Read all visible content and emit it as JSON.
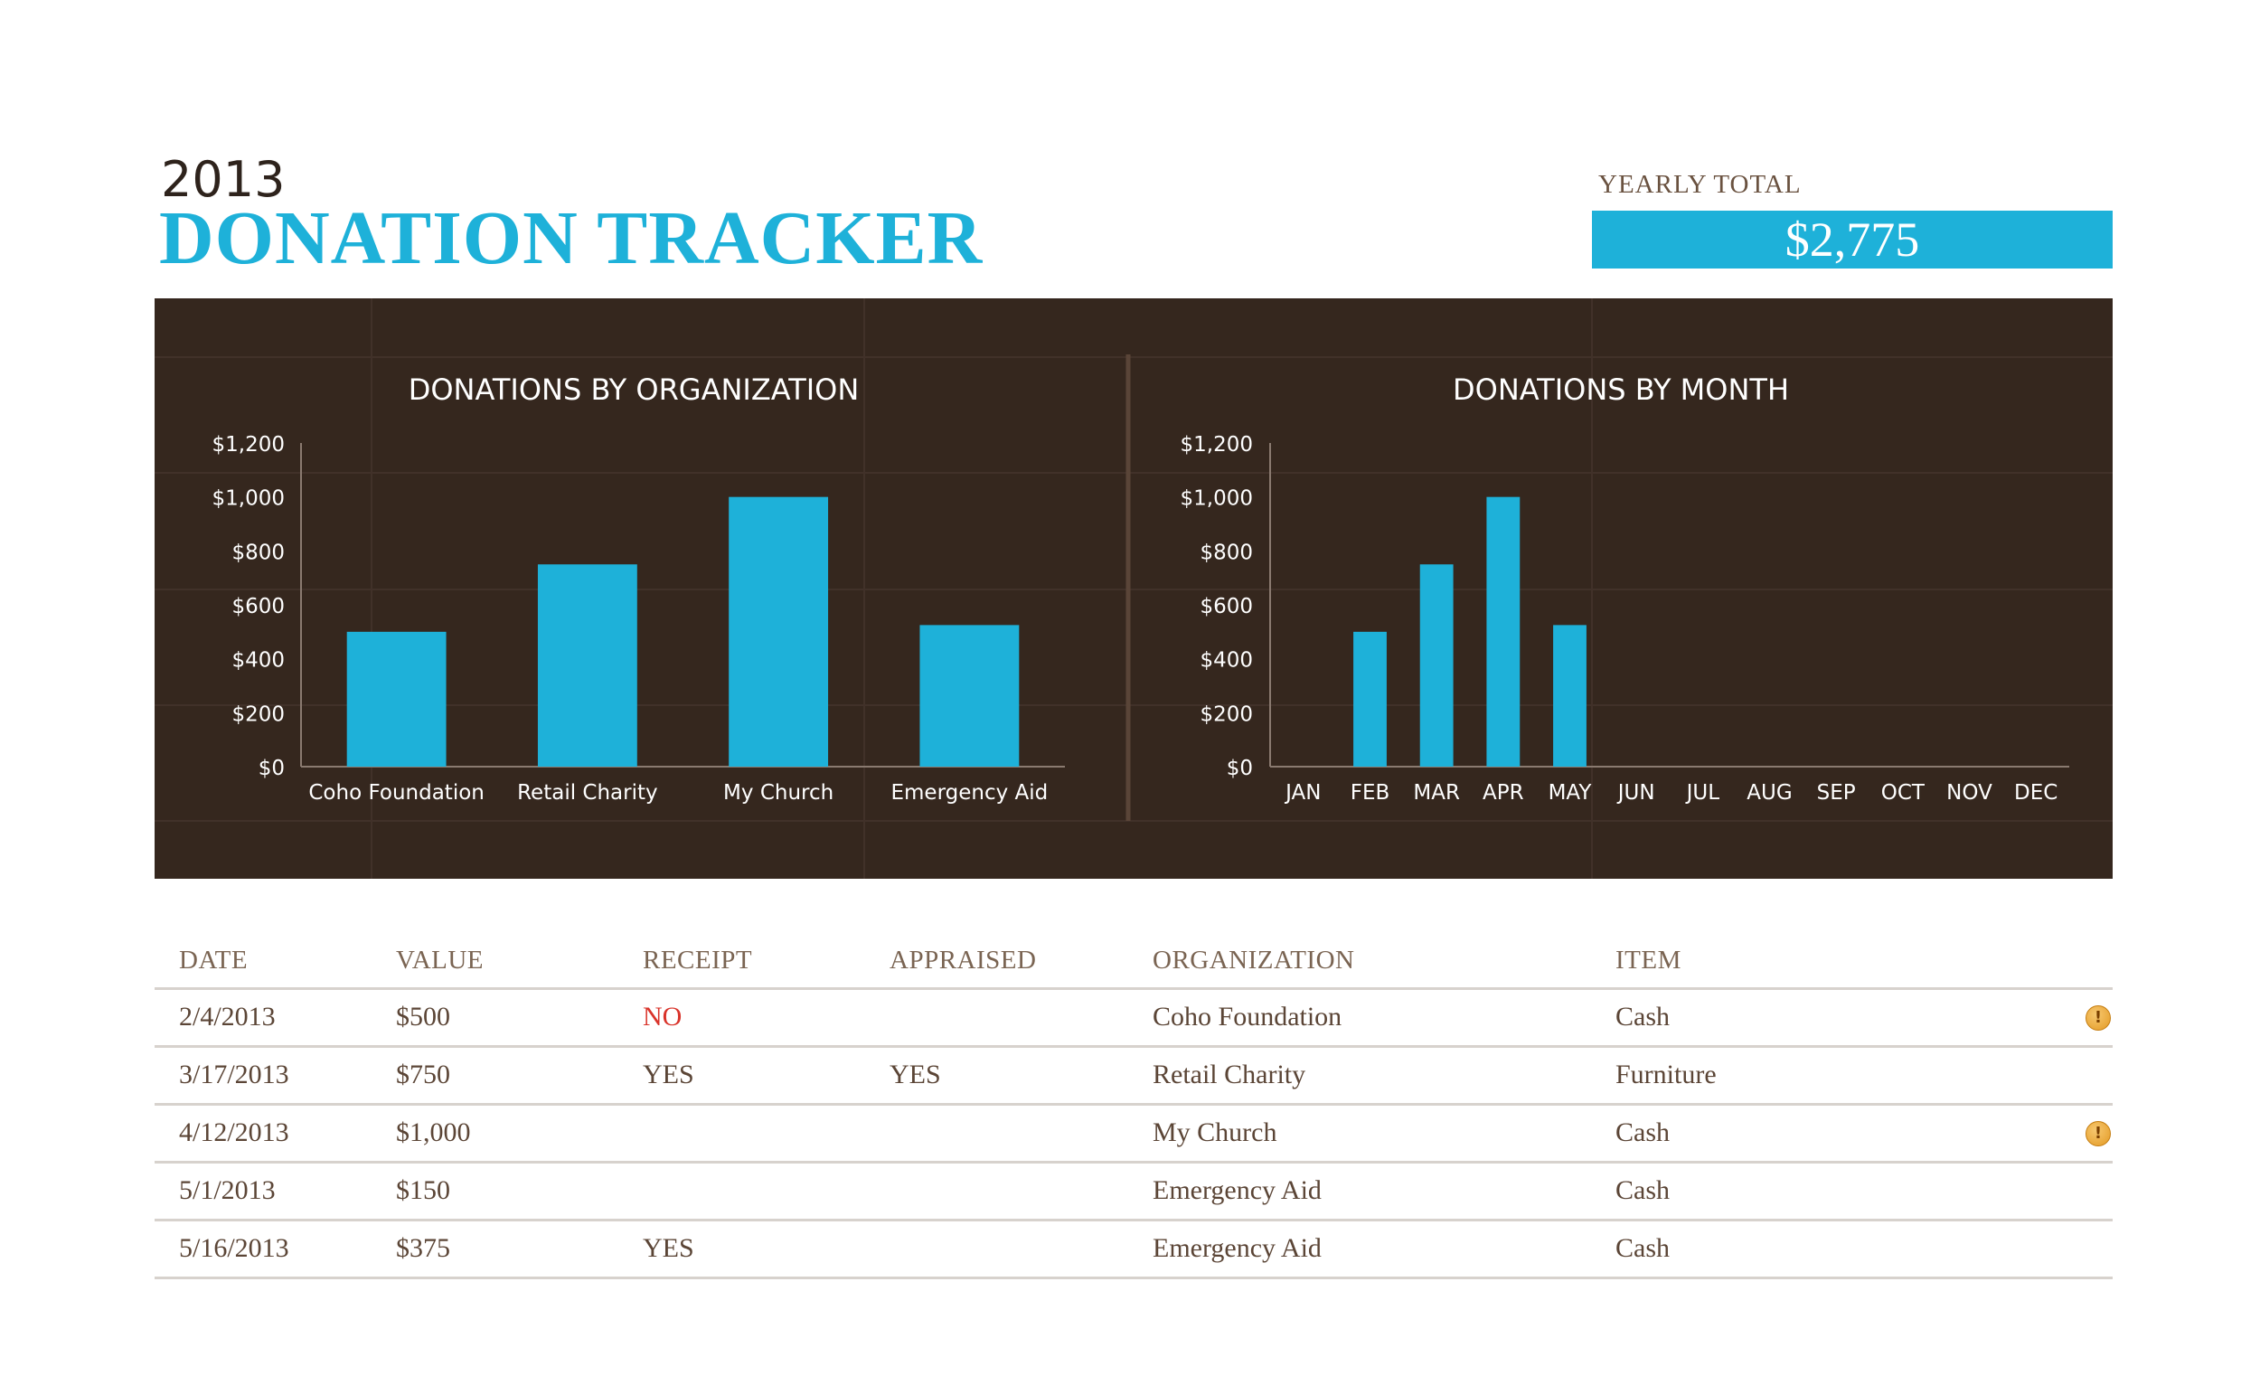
{
  "header": {
    "year": "2013",
    "title": "DONATION TRACKER",
    "total_label": "YEARLY TOTAL",
    "total_value": "$2,775"
  },
  "colors": {
    "accent": "#1eb1d9",
    "panel": "#35271e",
    "alert": "#d9332a",
    "flag": "#e39a24"
  },
  "chart_data": [
    {
      "type": "bar",
      "title": "DONATIONS BY ORGANIZATION",
      "categories": [
        "Coho Foundation",
        "Retail Charity",
        "My Church",
        "Emergency Aid"
      ],
      "values": [
        500,
        750,
        1000,
        525
      ],
      "ylim": [
        0,
        1200
      ],
      "yticks": [
        0,
        200,
        400,
        600,
        800,
        1000,
        1200
      ],
      "ytick_labels": [
        "$0",
        "$200",
        "$400",
        "$600",
        "$800",
        "$1,000",
        "$1,200"
      ],
      "xlabel": "",
      "ylabel": "",
      "grid": true,
      "color": "#1eb1d9"
    },
    {
      "type": "bar",
      "title": "DONATIONS BY MONTH",
      "categories": [
        "JAN",
        "FEB",
        "MAR",
        "APR",
        "MAY",
        "JUN",
        "JUL",
        "AUG",
        "SEP",
        "OCT",
        "NOV",
        "DEC"
      ],
      "values": [
        0,
        500,
        750,
        1000,
        525,
        0,
        0,
        0,
        0,
        0,
        0,
        0
      ],
      "ylim": [
        0,
        1200
      ],
      "yticks": [
        0,
        200,
        400,
        600,
        800,
        1000,
        1200
      ],
      "ytick_labels": [
        "$0",
        "$200",
        "$400",
        "$600",
        "$800",
        "$1,000",
        "$1,200"
      ],
      "xlabel": "",
      "ylabel": "",
      "grid": true,
      "color": "#1eb1d9"
    }
  ],
  "table": {
    "headers": {
      "date": "DATE",
      "value": "VALUE",
      "receipt": "RECEIPT",
      "appraised": "APPRAISED",
      "organization": "ORGANIZATION",
      "item": "ITEM"
    },
    "rows": [
      {
        "date": "2/4/2013",
        "value": "$500",
        "receipt": "NO",
        "appraised": "",
        "organization": "Coho Foundation",
        "item": "Cash",
        "flag": "!"
      },
      {
        "date": "3/17/2013",
        "value": "$750",
        "receipt": "YES",
        "appraised": "YES",
        "organization": "Retail Charity",
        "item": "Furniture",
        "flag": ""
      },
      {
        "date": "4/12/2013",
        "value": "$1,000",
        "receipt": "",
        "appraised": "",
        "organization": "My Church",
        "item": "Cash",
        "flag": "!"
      },
      {
        "date": "5/1/2013",
        "value": "$150",
        "receipt": "",
        "appraised": "",
        "organization": "Emergency Aid",
        "item": "Cash",
        "flag": ""
      },
      {
        "date": "5/16/2013",
        "value": "$375",
        "receipt": "YES",
        "appraised": "",
        "organization": "Emergency Aid",
        "item": "Cash",
        "flag": ""
      }
    ]
  }
}
